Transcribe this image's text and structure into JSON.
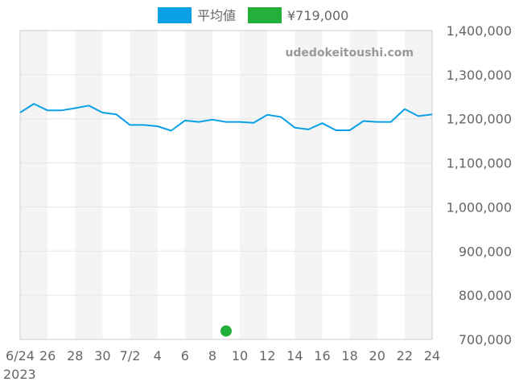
{
  "chart_data": {
    "type": "line",
    "x": [
      "6/24",
      "6/25",
      "6/26",
      "6/27",
      "6/28",
      "6/29",
      "6/30",
      "7/1",
      "7/2",
      "7/3",
      "7/4",
      "7/5",
      "7/6",
      "7/7",
      "7/8",
      "7/9",
      "7/10",
      "7/11",
      "7/12",
      "7/13",
      "7/14",
      "7/15",
      "7/16",
      "7/17",
      "7/18",
      "7/19",
      "7/20",
      "7/21",
      "7/22",
      "7/23",
      "7/24"
    ],
    "x_tick_labels": [
      "6/24",
      "26",
      "28",
      "30",
      "7/2",
      "4",
      "6",
      "8",
      "10",
      "12",
      "14",
      "16",
      "18",
      "20",
      "22",
      "24"
    ],
    "x_year_label": "2023",
    "series": [
      {
        "name": "平均値",
        "color": "#0aa0e6",
        "values": [
          1214000,
          1234000,
          1219000,
          1219000,
          1224000,
          1230000,
          1214000,
          1210000,
          1186000,
          1186000,
          1183000,
          1173000,
          1196000,
          1193000,
          1198000,
          1193000,
          1193000,
          1191000,
          1209000,
          1204000,
          1180000,
          1176000,
          1190000,
          1174000,
          1174000,
          1195000,
          1193000,
          1193000,
          1222000,
          1206000,
          1210000
        ]
      },
      {
        "name": "¥719,000",
        "color": "#22b03a",
        "points": [
          {
            "x": "7/9",
            "y": 719000
          }
        ]
      }
    ],
    "y_tick_labels": [
      "700,000",
      "800,000",
      "900,000",
      "1,000,000",
      "1,100,000",
      "1,200,000",
      "1,300,000",
      "1,400,000"
    ],
    "ylim": [
      700000,
      1400000
    ],
    "grid": true,
    "legend_position": "top-center",
    "watermark": "udedokeitoushi.com",
    "title": "",
    "xlabel": "",
    "ylabel": ""
  }
}
